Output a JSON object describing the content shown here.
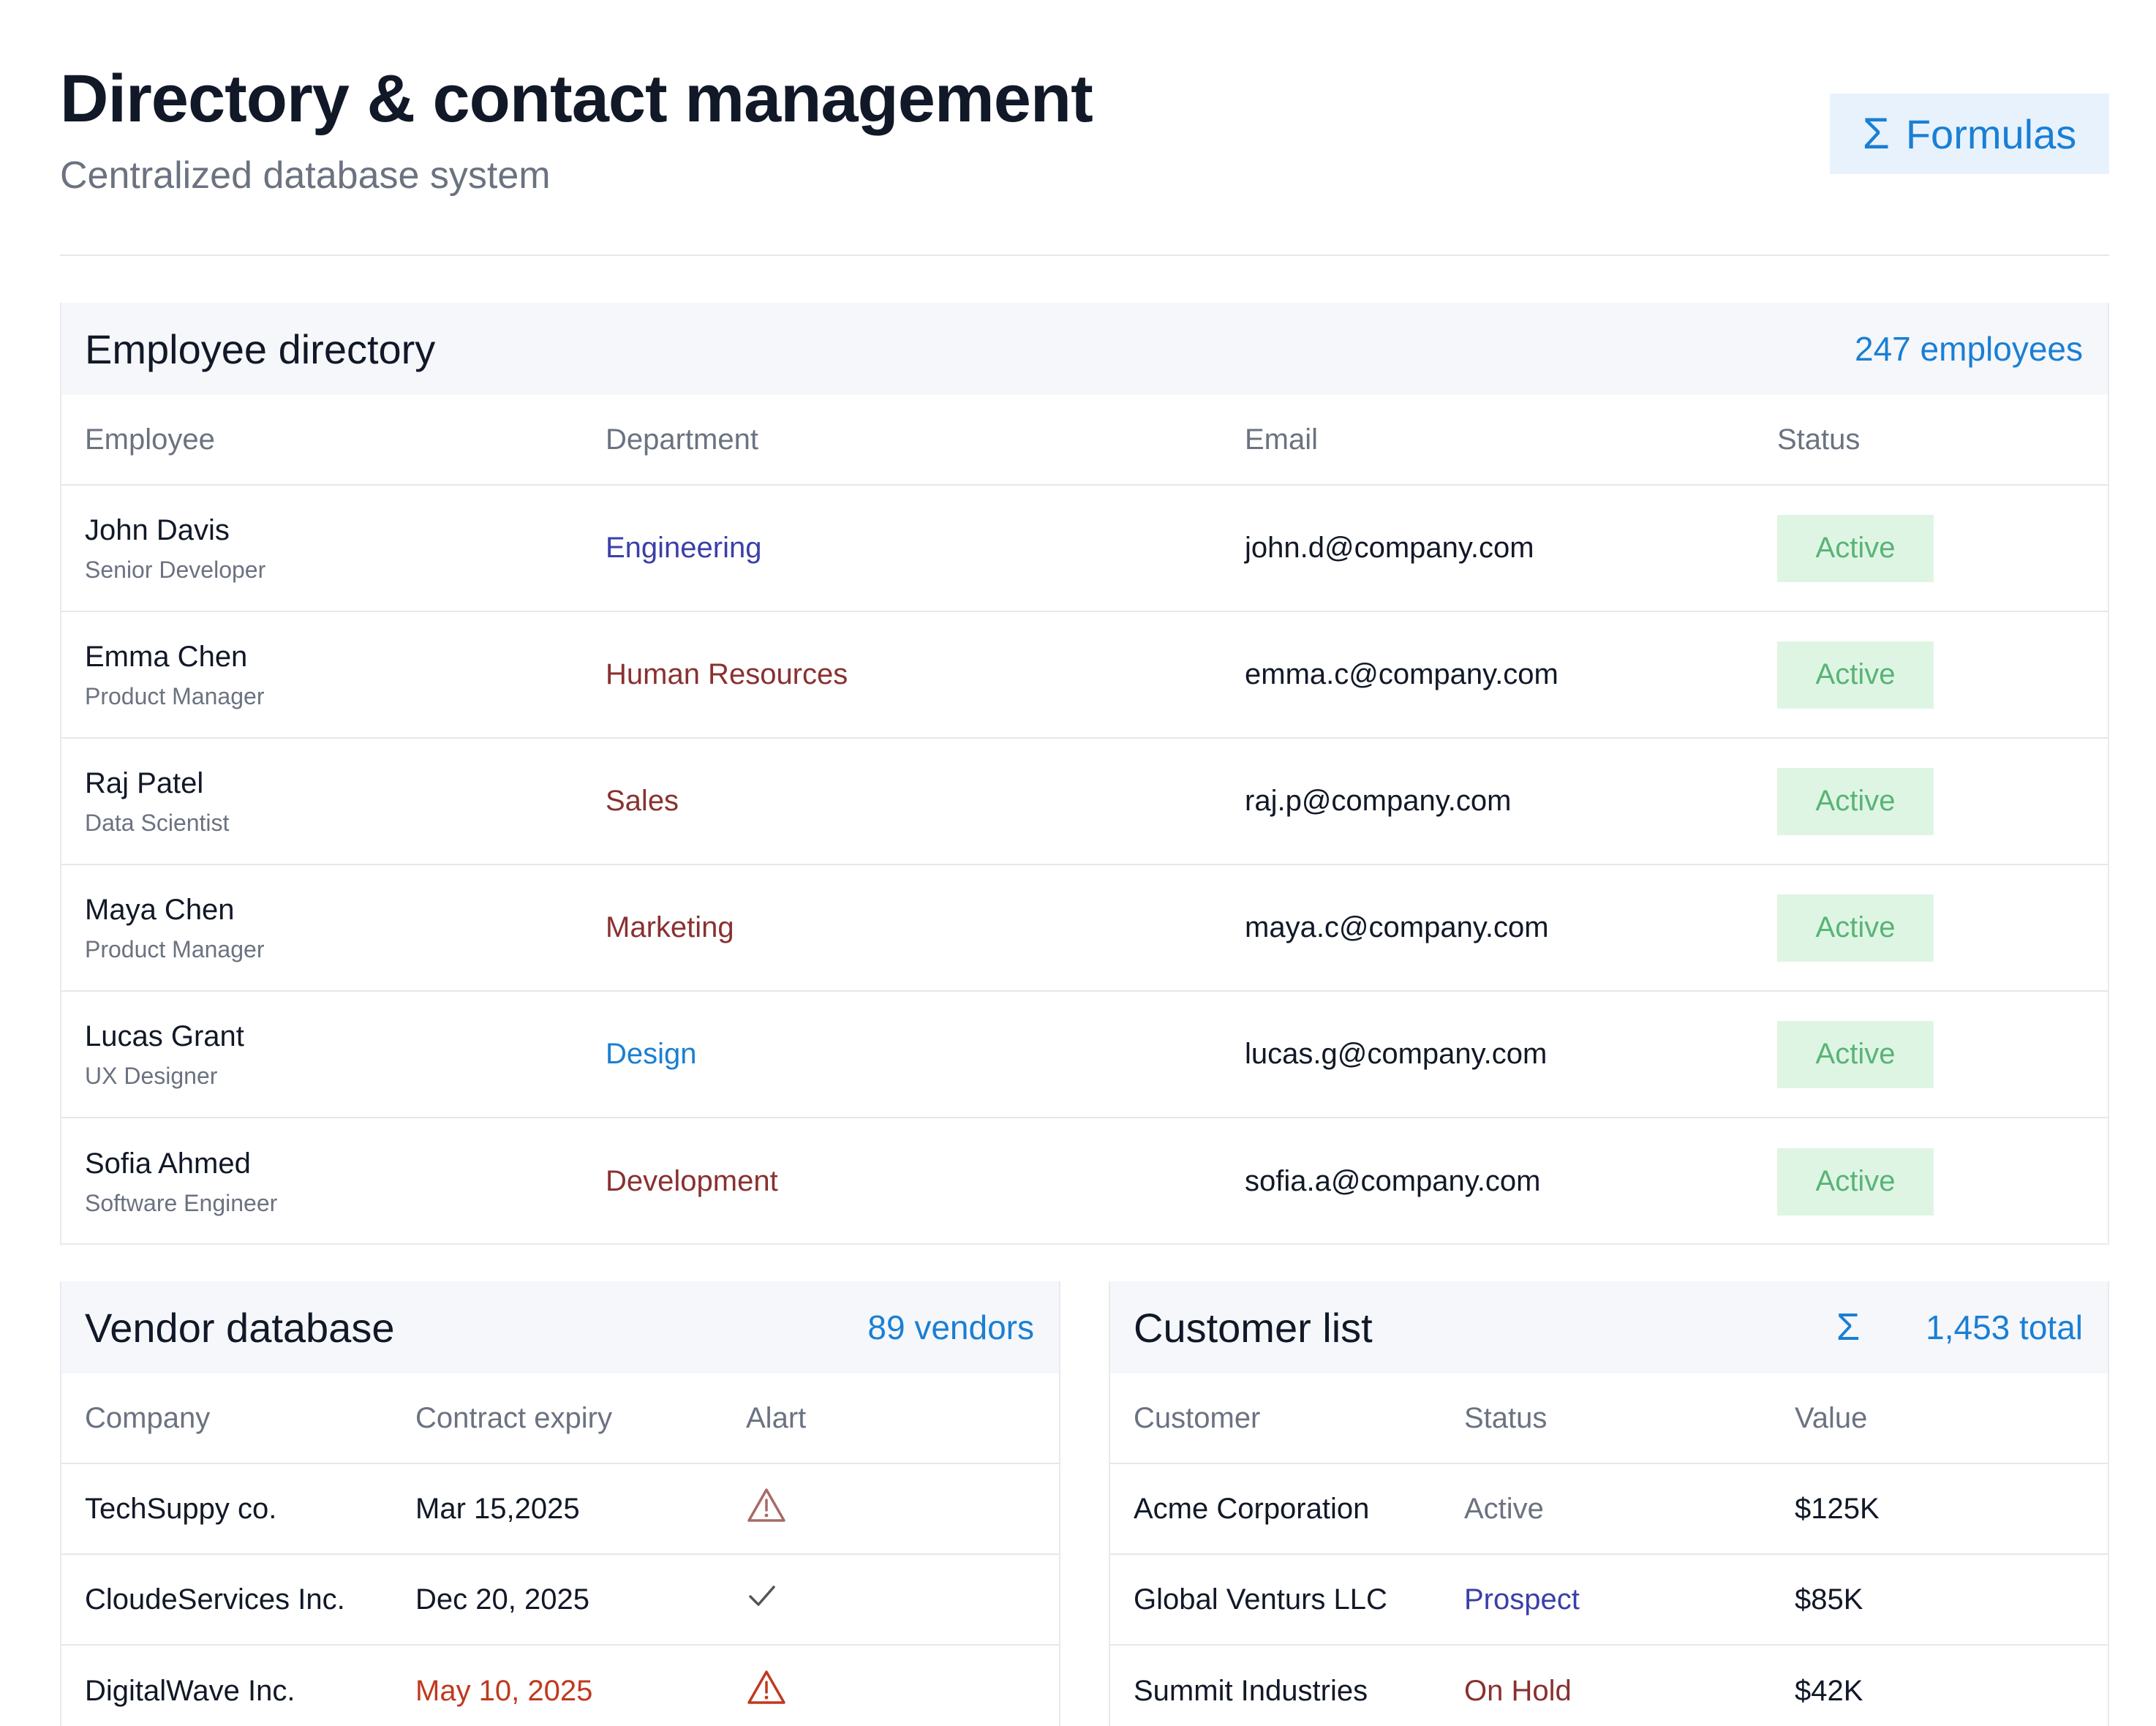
{
  "header": {
    "title": "Directory & contact management",
    "subtitle": "Centralized database system",
    "formulas_label": "Formulas",
    "formulas_icon": "sigma-icon"
  },
  "employee_directory": {
    "title": "Employee directory",
    "count": "247 employees",
    "columns": [
      "Employee",
      "Department",
      "Email",
      "Status"
    ],
    "rows": [
      {
        "name": "John Davis",
        "role": "Senior Developer",
        "department": "Engineering",
        "dept_color": "#3b3fa8",
        "email": "john.d@company.com",
        "status": "Active"
      },
      {
        "name": "Emma Chen",
        "role": "Product Manager",
        "department": "Human Resources",
        "dept_color": "#8a3030",
        "email": "emma.c@company.com",
        "status": "Active"
      },
      {
        "name": "Raj Patel",
        "role": "Data Scientist",
        "department": "Sales",
        "dept_color": "#8a3030",
        "email": "raj.p@company.com",
        "status": "Active"
      },
      {
        "name": "Maya Chen",
        "role": "Product Manager",
        "department": "Marketing",
        "dept_color": "#8a3030",
        "email": "maya.c@company.com",
        "status": "Active"
      },
      {
        "name": "Lucas Grant",
        "role": "UX Designer",
        "department": "Design",
        "dept_color": "#1a7fd4",
        "email": "lucas.g@company.com",
        "status": "Active"
      },
      {
        "name": "Sofia Ahmed",
        "role": "Software Engineer",
        "department": "Development",
        "dept_color": "#8a3030",
        "email": "sofia.a@company.com",
        "status": "Active"
      }
    ]
  },
  "vendor_database": {
    "title": "Vendor database",
    "count": "89 vendors",
    "columns": [
      "Company",
      "Contract expiry",
      "Alart"
    ],
    "rows": [
      {
        "company": "TechSuppy co.",
        "expiry": "Mar 15,2025",
        "expiry_color": "#111827",
        "alert_icon": "warning-icon",
        "alert_color": "#a86a66"
      },
      {
        "company": "CloudeServices Inc.",
        "expiry": "Dec 20, 2025",
        "expiry_color": "#111827",
        "alert_icon": "check-icon",
        "alert_color": "#555555"
      },
      {
        "company": "DigitalWave Inc.",
        "expiry": "May 10, 2025",
        "expiry_color": "#c0391e",
        "alert_icon": "warning-icon",
        "alert_color": "#c0391e"
      }
    ]
  },
  "customer_list": {
    "title": "Customer list",
    "icon": "sigma-icon",
    "count": "1,453 total",
    "columns": [
      "Customer",
      "Status",
      "Value"
    ],
    "rows": [
      {
        "customer": "Acme Corporation",
        "status": "Active",
        "status_color": "#6b7280",
        "value": "$125K"
      },
      {
        "customer": "Global Venturs LLC",
        "status": "Prospect",
        "status_color": "#3b3fa8",
        "value": "$85K"
      },
      {
        "customer": "Summit Industries",
        "status": "On Hold",
        "status_color": "#8a3030",
        "value": "$42K"
      }
    ]
  }
}
